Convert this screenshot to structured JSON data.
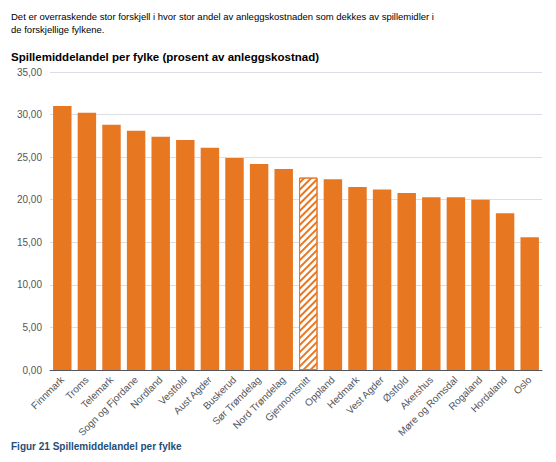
{
  "chart_data": {
    "type": "bar",
    "title": "Spillemiddelandel per fylke (prosent av anleggskostnad)",
    "subtitle": [
      "Det er overraskende stor forskjell i hvor stor andel av anleggskostnaden som dekkes av spillemidler i",
      "de forskjellige fylkene."
    ],
    "caption": "Figur 21 Spillemiddelandel per fylke",
    "categories": [
      "Finnmark",
      "Troms",
      "Telemark",
      "Sogn og Fjordane",
      "Nordland",
      "Vestfold",
      "Aust Agder",
      "Buskerud",
      "Sør Trøndelag",
      "Nord Trøndelag",
      "Gjennomsnitt",
      "Oppland",
      "Hedmark",
      "Vest Agder",
      "Østfold",
      "Akershus",
      "Møre og Romsdal",
      "Rogaland",
      "Hordaland",
      "Oslo"
    ],
    "values": [
      31.0,
      30.2,
      28.8,
      28.1,
      27.4,
      27.0,
      26.1,
      24.9,
      24.2,
      23.6,
      22.6,
      22.4,
      21.5,
      21.2,
      20.8,
      20.3,
      20.3,
      20.0,
      18.4,
      15.6
    ],
    "color": "#E87722",
    "colors": [
      "#E87722",
      "#E87722",
      "#E87722",
      "#E87722",
      "#E87722",
      "#E87722",
      "#E87722",
      "#E87722",
      "#E87722",
      "#E87722",
      "#ffffff",
      "#E87722",
      "#E87722",
      "#E87722",
      "#E87722",
      "#E87722",
      "#E87722",
      "#E87722",
      "#E87722",
      "#E87722"
    ],
    "ylim": [
      0,
      35
    ],
    "yticks": [
      {
        "value": 0,
        "label": "0,00"
      },
      {
        "value": 5,
        "label": "5,00"
      },
      {
        "value": 10,
        "label": "10,00"
      },
      {
        "value": 15,
        "label": "15,00"
      },
      {
        "value": 20,
        "label": "20,00"
      },
      {
        "value": 25,
        "label": "25,00"
      },
      {
        "value": 30,
        "label": "30,00"
      },
      {
        "value": 35,
        "label": "35,00"
      }
    ],
    "grid": true
  }
}
